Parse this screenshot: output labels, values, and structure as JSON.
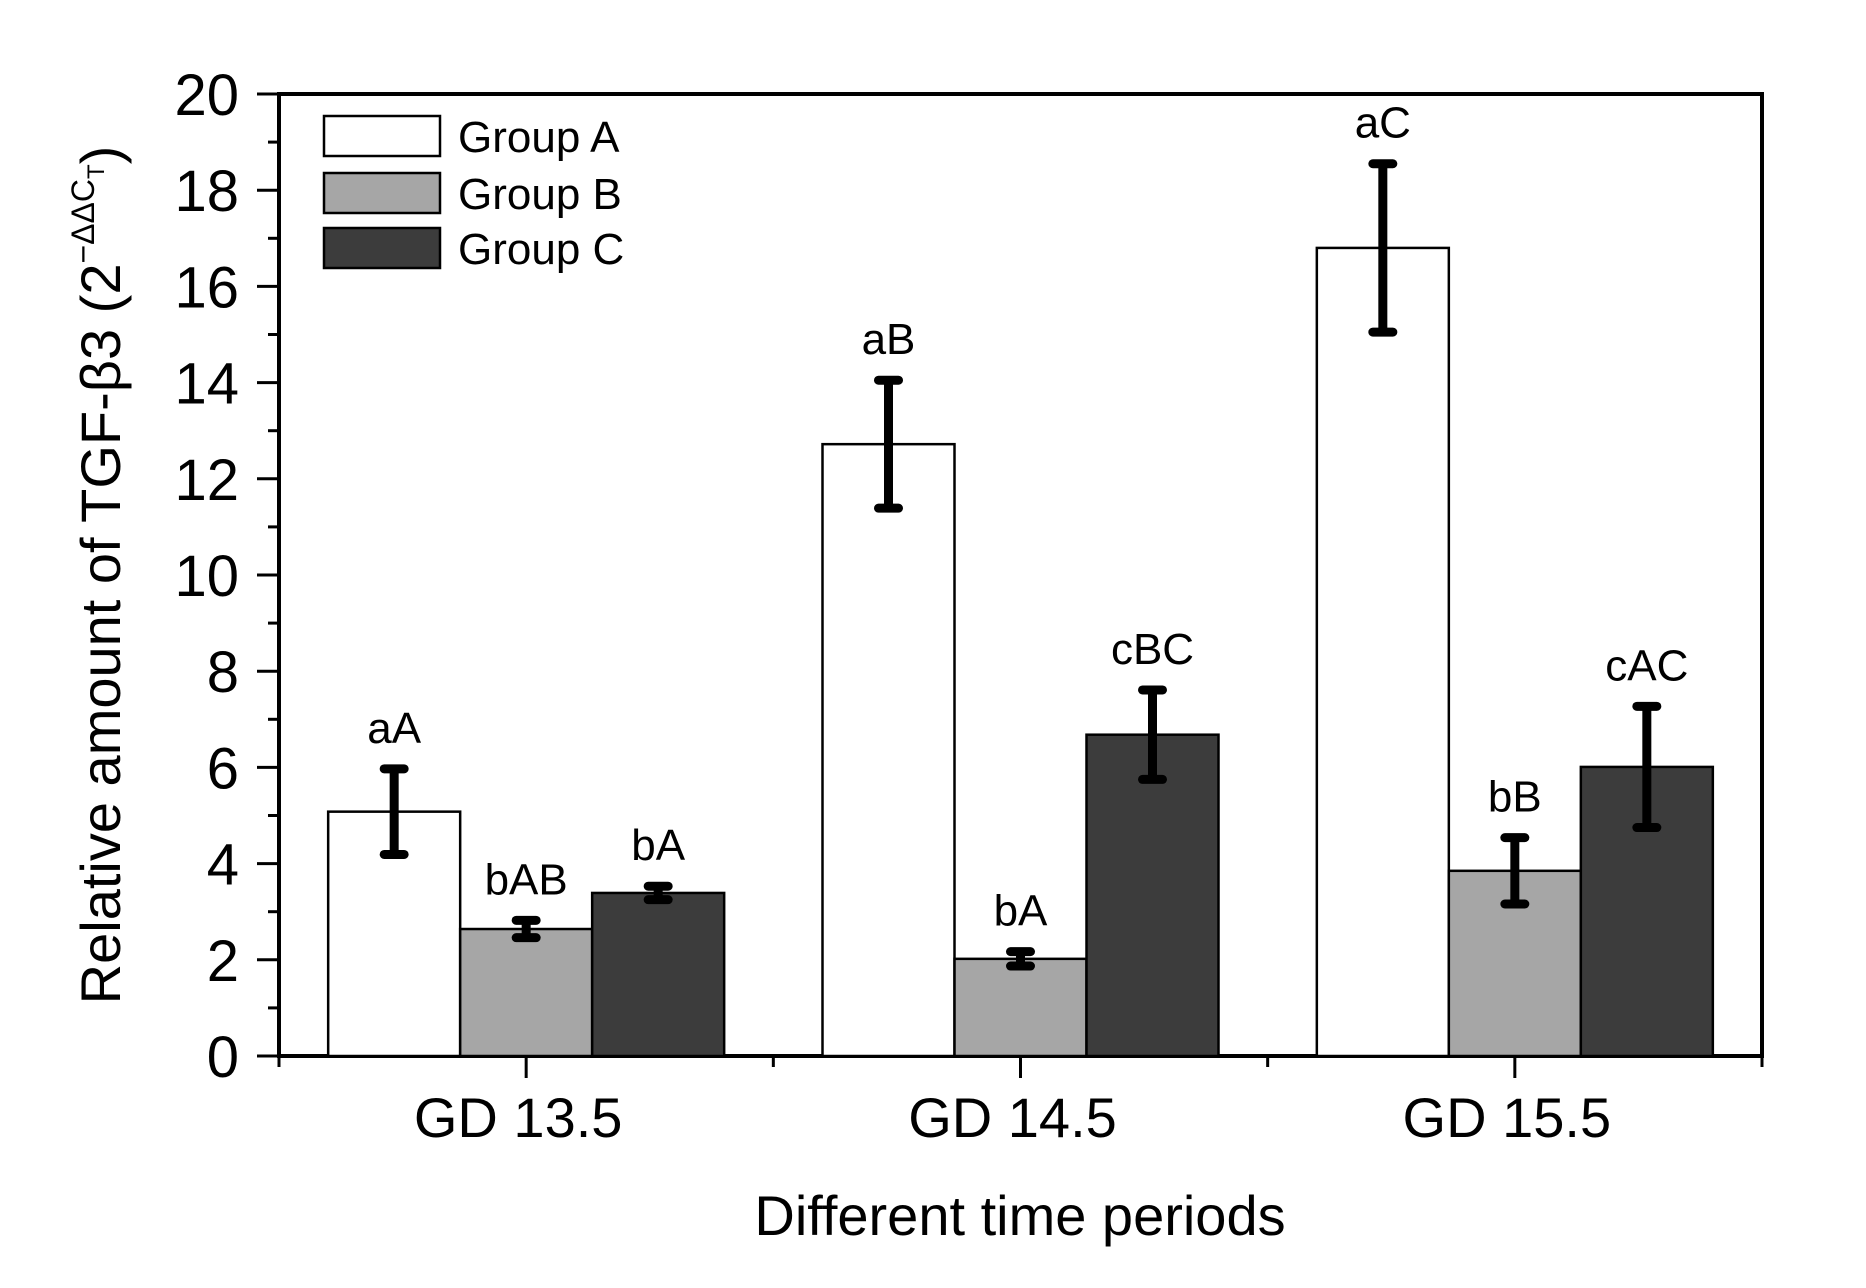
{
  "chart_data": {
    "type": "bar",
    "title": "",
    "xlabel": "Different time periods",
    "ylabel": {
      "prefix": "Relative amount of TGF-β3 (2",
      "superscript": "−ΔΔC",
      "subscript": "T",
      "suffix": ")"
    },
    "ylim": [
      0,
      20
    ],
    "yticks": [
      0,
      2,
      4,
      6,
      8,
      10,
      12,
      14,
      16,
      18,
      20
    ],
    "yticks_minor_step": 1,
    "grid": false,
    "legend_position": "top-left",
    "categories": [
      "GD 13.5",
      "GD 14.5",
      "GD 15.5"
    ],
    "series": [
      {
        "name": "Group A",
        "color": "#ffffff",
        "values": [
          5.08,
          12.72,
          16.8
        ],
        "error": [
          0.89,
          1.33,
          1.75
        ],
        "annotations": [
          "aA",
          "aB",
          "aC"
        ]
      },
      {
        "name": "Group B",
        "color": "#a6a6a6",
        "values": [
          2.64,
          2.02,
          3.85
        ],
        "error": [
          0.18,
          0.15,
          0.69
        ],
        "annotations": [
          "bAB",
          "bA",
          "bB"
        ]
      },
      {
        "name": "Group C",
        "color": "#3c3c3c",
        "values": [
          3.39,
          6.68,
          6.01
        ],
        "error": [
          0.14,
          0.93,
          1.26
        ],
        "annotations": [
          "bA",
          "cBC",
          "cAC"
        ]
      }
    ]
  }
}
